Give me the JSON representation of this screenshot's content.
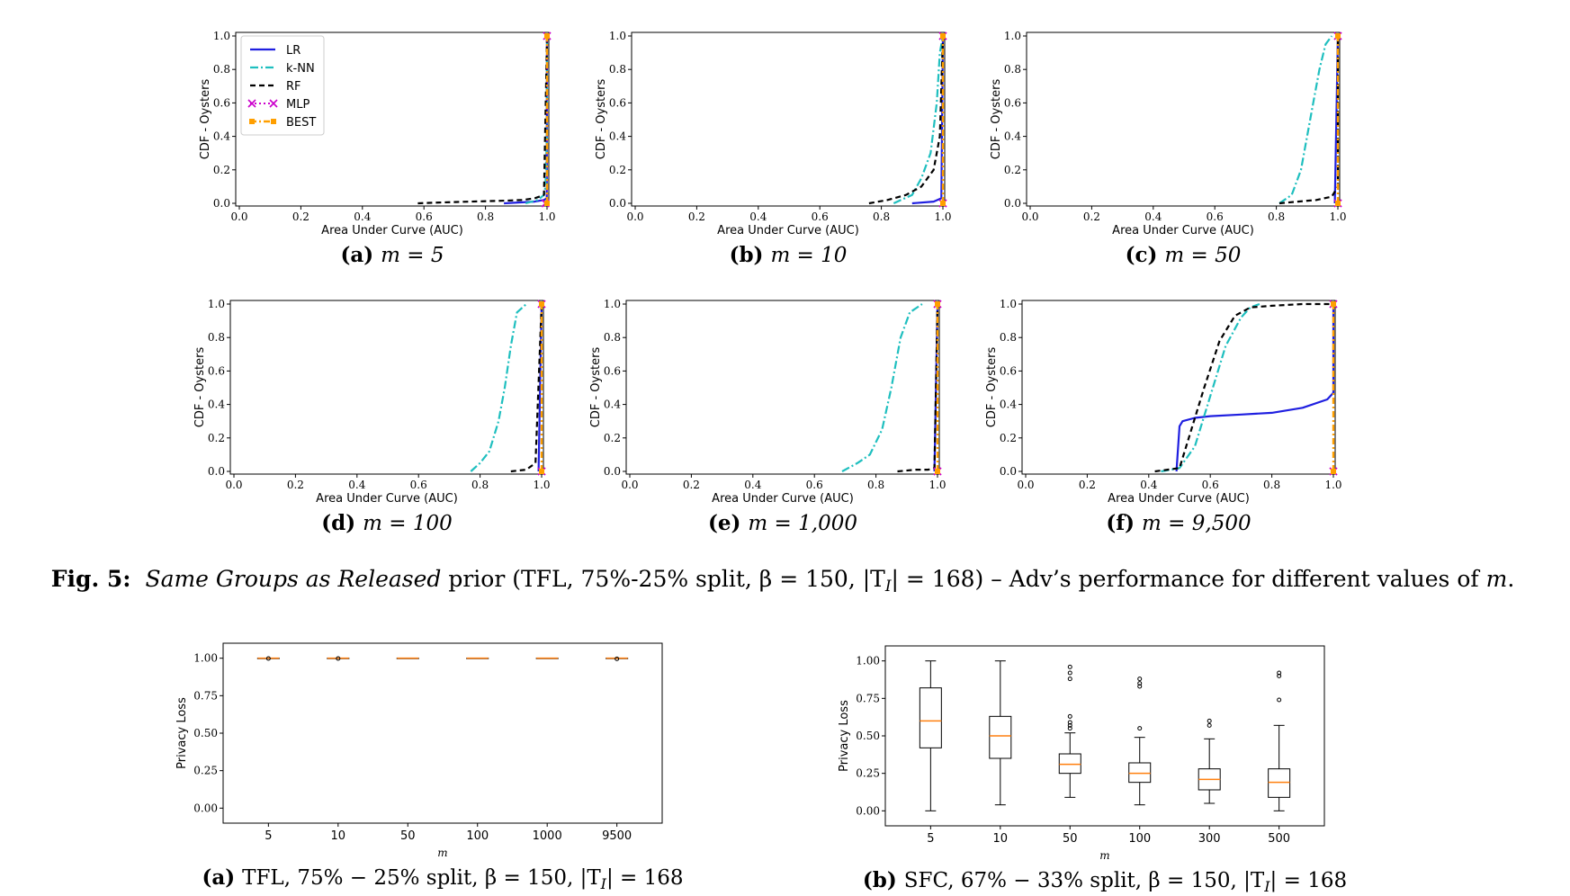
{
  "figure_caption": {
    "label": "Fig. 5:",
    "italic": "Same Groups as Released",
    "rest": " prior (TFL, 75%-25% split, β = 150, |T",
    "sub": "I",
    "rest2": "| = 168) – Adv’s performance for different values of ",
    "var": "m",
    "end": "."
  },
  "colors": {
    "LR": "#1f1fe0",
    "k-NN": "#1fbfbf",
    "RF": "#000000",
    "MLP": "#cc00cc",
    "BEST": "#ff9f00",
    "median": "#ff7f0e"
  },
  "chart_data": [
    {
      "type": "line",
      "id": "a",
      "label": "(a)",
      "subtitle": "m = 5",
      "xlabel": "Area Under Curve (AUC)",
      "ylabel": "CDF - Oysters",
      "xlim": [
        0,
        1
      ],
      "ylim": [
        0,
        1
      ],
      "xticks": [
        "0.0",
        "0.2",
        "0.4",
        "0.6",
        "0.8",
        "1.0"
      ],
      "yticks": [
        "0.0",
        "0.2",
        "0.4",
        "0.6",
        "0.8",
        "1.0"
      ],
      "legend": [
        "LR",
        "k-NN",
        "RF",
        "MLP",
        "BEST"
      ],
      "series": [
        {
          "name": "LR",
          "x": [
            0.86,
            0.96,
            0.99,
            0.999,
            1.0
          ],
          "y": [
            0,
            0.01,
            0.02,
            0.03,
            1.0
          ]
        },
        {
          "name": "k-NN",
          "x": [
            0.93,
            0.97,
            0.99,
            0.995,
            0.999,
            1.0
          ],
          "y": [
            0,
            0.02,
            0.05,
            0.1,
            0.4,
            1.0
          ]
        },
        {
          "name": "RF",
          "x": [
            0.58,
            0.65,
            0.75,
            0.85,
            0.92,
            0.96,
            0.99,
            1.0
          ],
          "y": [
            0,
            0.005,
            0.01,
            0.015,
            0.02,
            0.03,
            0.05,
            1.0
          ]
        },
        {
          "name": "MLP",
          "x": [
            0.995,
            1.0,
            1.0
          ],
          "y": [
            0,
            0.01,
            1.0
          ]
        },
        {
          "name": "BEST",
          "x": [
            1.0,
            1.0
          ],
          "y": [
            0,
            1.0
          ]
        }
      ]
    },
    {
      "type": "line",
      "id": "b",
      "label": "(b)",
      "subtitle": "m = 10",
      "xlabel": "Area Under Curve (AUC)",
      "ylabel": "CDF - Oysters",
      "xlim": [
        0,
        1
      ],
      "ylim": [
        0,
        1
      ],
      "xticks": [
        "0.0",
        "0.2",
        "0.4",
        "0.6",
        "0.8",
        "1.0"
      ],
      "yticks": [
        "0.0",
        "0.2",
        "0.4",
        "0.6",
        "0.8",
        "1.0"
      ],
      "series": [
        {
          "name": "LR",
          "x": [
            0.9,
            0.97,
            0.995,
            1.0
          ],
          "y": [
            0,
            0.01,
            0.03,
            1.0
          ]
        },
        {
          "name": "k-NN",
          "x": [
            0.84,
            0.9,
            0.93,
            0.96,
            0.98,
            0.99,
            1.0
          ],
          "y": [
            0,
            0.05,
            0.15,
            0.3,
            0.6,
            0.9,
            1.0
          ]
        },
        {
          "name": "RF",
          "x": [
            0.76,
            0.82,
            0.88,
            0.93,
            0.97,
            0.99,
            1.0
          ],
          "y": [
            0,
            0.02,
            0.05,
            0.1,
            0.2,
            0.4,
            1.0
          ]
        },
        {
          "name": "MLP",
          "x": [
            1.0,
            1.0
          ],
          "y": [
            0,
            1.0
          ]
        },
        {
          "name": "BEST",
          "x": [
            1.0,
            1.0
          ],
          "y": [
            0,
            1.0
          ]
        }
      ]
    },
    {
      "type": "line",
      "id": "c",
      "label": "(c)",
      "subtitle": "m = 50",
      "xlabel": "Area Under Curve (AUC)",
      "ylabel": "CDF - Oysters",
      "xlim": [
        0,
        1
      ],
      "ylim": [
        0,
        1
      ],
      "xticks": [
        "0.0",
        "0.2",
        "0.4",
        "0.6",
        "0.8",
        "1.0"
      ],
      "yticks": [
        "0.0",
        "0.2",
        "0.4",
        "0.6",
        "0.8",
        "1.0"
      ],
      "series": [
        {
          "name": "LR",
          "x": [
            0.99,
            1.0
          ],
          "y": [
            0,
            1.0
          ]
        },
        {
          "name": "k-NN",
          "x": [
            0.81,
            0.85,
            0.88,
            0.9,
            0.92,
            0.94,
            0.96,
            0.98
          ],
          "y": [
            0,
            0.05,
            0.2,
            0.4,
            0.6,
            0.8,
            0.95,
            1.0
          ]
        },
        {
          "name": "RF",
          "x": [
            0.81,
            0.87,
            0.93,
            0.98,
            1.0,
            1.0
          ],
          "y": [
            0,
            0.01,
            0.02,
            0.04,
            0.1,
            1.0
          ]
        },
        {
          "name": "MLP",
          "x": [
            1.0,
            1.0
          ],
          "y": [
            0,
            1.0
          ]
        },
        {
          "name": "BEST",
          "x": [
            1.0,
            1.0
          ],
          "y": [
            0,
            1.0
          ]
        }
      ]
    },
    {
      "type": "line",
      "id": "d",
      "label": "(d)",
      "subtitle": "m = 100",
      "xlabel": "Area Under Curve (AUC)",
      "ylabel": "CDF - Oysters",
      "xlim": [
        0,
        1
      ],
      "ylim": [
        0,
        1
      ],
      "xticks": [
        "0.0",
        "0.2",
        "0.4",
        "0.6",
        "0.8",
        "1.0"
      ],
      "yticks": [
        "0.0",
        "0.2",
        "0.4",
        "0.6",
        "0.8",
        "1.0"
      ],
      "series": [
        {
          "name": "LR",
          "x": [
            0.99,
            1.0
          ],
          "y": [
            0,
            1.0
          ]
        },
        {
          "name": "k-NN",
          "x": [
            0.77,
            0.8,
            0.83,
            0.86,
            0.88,
            0.9,
            0.92,
            0.95
          ],
          "y": [
            0,
            0.05,
            0.12,
            0.3,
            0.5,
            0.75,
            0.95,
            1.0
          ]
        },
        {
          "name": "RF",
          "x": [
            0.9,
            0.95,
            0.98,
            1.0
          ],
          "y": [
            0,
            0.01,
            0.05,
            1.0
          ]
        },
        {
          "name": "MLP",
          "x": [
            1.0,
            1.0
          ],
          "y": [
            0,
            1.0
          ]
        },
        {
          "name": "BEST",
          "x": [
            1.0,
            1.0
          ],
          "y": [
            0,
            1.0
          ]
        }
      ]
    },
    {
      "type": "line",
      "id": "e",
      "label": "(e)",
      "subtitle": "m = 1,000",
      "xlabel": "Area Under Curve (AUC)",
      "ylabel": "CDF - Oysters",
      "xlim": [
        0,
        1
      ],
      "ylim": [
        0,
        1
      ],
      "xticks": [
        "0.0",
        "0.2",
        "0.4",
        "0.6",
        "0.8",
        "1.0"
      ],
      "yticks": [
        "0.0",
        "0.2",
        "0.4",
        "0.6",
        "0.8",
        "1.0"
      ],
      "series": [
        {
          "name": "LR",
          "x": [
            0.99,
            1.0
          ],
          "y": [
            0,
            1.0
          ]
        },
        {
          "name": "k-NN",
          "x": [
            0.69,
            0.74,
            0.78,
            0.82,
            0.85,
            0.88,
            0.91,
            0.95
          ],
          "y": [
            0,
            0.05,
            0.1,
            0.25,
            0.5,
            0.8,
            0.95,
            1.0
          ]
        },
        {
          "name": "RF",
          "x": [
            0.87,
            0.93,
            0.97,
            0.99,
            1.0
          ],
          "y": [
            0,
            0.01,
            0.01,
            0.02,
            1.0
          ]
        },
        {
          "name": "MLP",
          "x": [
            1.0,
            1.0
          ],
          "y": [
            0,
            1.0
          ]
        },
        {
          "name": "BEST",
          "x": [
            1.0,
            1.0
          ],
          "y": [
            0,
            1.0
          ]
        }
      ]
    },
    {
      "type": "line",
      "id": "f",
      "label": "(f)",
      "subtitle": "m = 9,500",
      "xlabel": "Area Under Curve (AUC)",
      "ylabel": "CDF - Oysters",
      "xlim": [
        0,
        1
      ],
      "ylim": [
        0,
        1
      ],
      "xticks": [
        "0.0",
        "0.2",
        "0.4",
        "0.6",
        "0.8",
        "1.0"
      ],
      "yticks": [
        "0.0",
        "0.2",
        "0.4",
        "0.6",
        "0.8",
        "1.0"
      ],
      "series": [
        {
          "name": "LR",
          "x": [
            0.49,
            0.5,
            0.51,
            0.55,
            0.6,
            0.7,
            0.8,
            0.9,
            0.98,
            1.0,
            1.0
          ],
          "y": [
            0,
            0.27,
            0.3,
            0.32,
            0.33,
            0.34,
            0.35,
            0.38,
            0.43,
            0.47,
            1.0
          ]
        },
        {
          "name": "k-NN",
          "x": [
            0.44,
            0.5,
            0.55,
            0.6,
            0.65,
            0.7,
            0.73,
            0.76
          ],
          "y": [
            0,
            0.02,
            0.15,
            0.45,
            0.75,
            0.92,
            0.98,
            1.0
          ]
        },
        {
          "name": "RF",
          "x": [
            0.42,
            0.5,
            0.53,
            0.58,
            0.63,
            0.68,
            0.73,
            0.8,
            0.9,
            1.0
          ],
          "y": [
            0,
            0.02,
            0.2,
            0.5,
            0.78,
            0.93,
            0.98,
            0.99,
            1.0,
            1.0
          ]
        },
        {
          "name": "MLP",
          "x": [
            1.0,
            1.0
          ],
          "y": [
            0,
            1.0
          ]
        },
        {
          "name": "BEST",
          "x": [
            1.0,
            1.0
          ],
          "y": [
            0,
            1.0
          ]
        }
      ]
    },
    {
      "type": "box",
      "id": "g",
      "label": "(a)",
      "subtitle": "TFL, 75% − 25% split, β = 150, |T",
      "subtitle_sub": "I",
      "subtitle_end": "| = 168",
      "xlabel": "m",
      "ylabel": "Privacy Loss",
      "ylim": [
        -0.1,
        1.1
      ],
      "yticks": [
        0,
        0.25,
        0.5,
        0.75,
        1.0
      ],
      "ytick_labels": [
        "0.00",
        "0.25",
        "0.50",
        "0.75",
        "1.00"
      ],
      "categories": [
        "5",
        "10",
        "50",
        "100",
        "1000",
        "9500"
      ],
      "boxes": [
        {
          "min": 1.0,
          "q1": 1.0,
          "median": 1.0,
          "q3": 1.0,
          "max": 1.0,
          "outliers": [
            0.998
          ]
        },
        {
          "min": 1.0,
          "q1": 1.0,
          "median": 1.0,
          "q3": 1.0,
          "max": 1.0,
          "outliers": [
            0.998
          ]
        },
        {
          "min": 1.0,
          "q1": 1.0,
          "median": 1.0,
          "q3": 1.0,
          "max": 1.0,
          "outliers": []
        },
        {
          "min": 1.0,
          "q1": 1.0,
          "median": 1.0,
          "q3": 1.0,
          "max": 1.0,
          "outliers": []
        },
        {
          "min": 1.0,
          "q1": 1.0,
          "median": 1.0,
          "q3": 1.0,
          "max": 1.0,
          "outliers": []
        },
        {
          "min": 1.0,
          "q1": 1.0,
          "median": 1.0,
          "q3": 1.0,
          "max": 1.0,
          "outliers": [
            0.996
          ]
        }
      ]
    },
    {
      "type": "box",
      "id": "h",
      "label": "(b)",
      "subtitle": "SFC, 67% − 33% split, β = 150, |T",
      "subtitle_sub": "I",
      "subtitle_end": "| = 168",
      "xlabel": "m",
      "ylabel": "Privacy Loss",
      "ylim": [
        -0.1,
        1.1
      ],
      "yticks": [
        0,
        0.25,
        0.5,
        0.75,
        1.0
      ],
      "ytick_labels": [
        "0.00",
        "0.25",
        "0.50",
        "0.75",
        "1.00"
      ],
      "categories": [
        "5",
        "10",
        "50",
        "100",
        "300",
        "500"
      ],
      "boxes": [
        {
          "min": 0.0,
          "q1": 0.42,
          "median": 0.6,
          "q3": 0.82,
          "max": 1.0,
          "outliers": []
        },
        {
          "min": 0.04,
          "q1": 0.35,
          "median": 0.5,
          "q3": 0.63,
          "max": 1.0,
          "outliers": []
        },
        {
          "min": 0.09,
          "q1": 0.25,
          "median": 0.31,
          "q3": 0.38,
          "max": 0.52,
          "outliers": [
            0.55,
            0.57,
            0.59,
            0.63,
            0.88,
            0.92,
            0.96
          ]
        },
        {
          "min": 0.04,
          "q1": 0.19,
          "median": 0.25,
          "q3": 0.32,
          "max": 0.49,
          "outliers": [
            0.55,
            0.83,
            0.85,
            0.88
          ]
        },
        {
          "min": 0.05,
          "q1": 0.14,
          "median": 0.21,
          "q3": 0.28,
          "max": 0.48,
          "outliers": [
            0.57,
            0.6
          ]
        },
        {
          "min": 0.0,
          "q1": 0.09,
          "median": 0.19,
          "q3": 0.28,
          "max": 0.57,
          "outliers": [
            0.74,
            0.9,
            0.92
          ]
        }
      ]
    }
  ]
}
